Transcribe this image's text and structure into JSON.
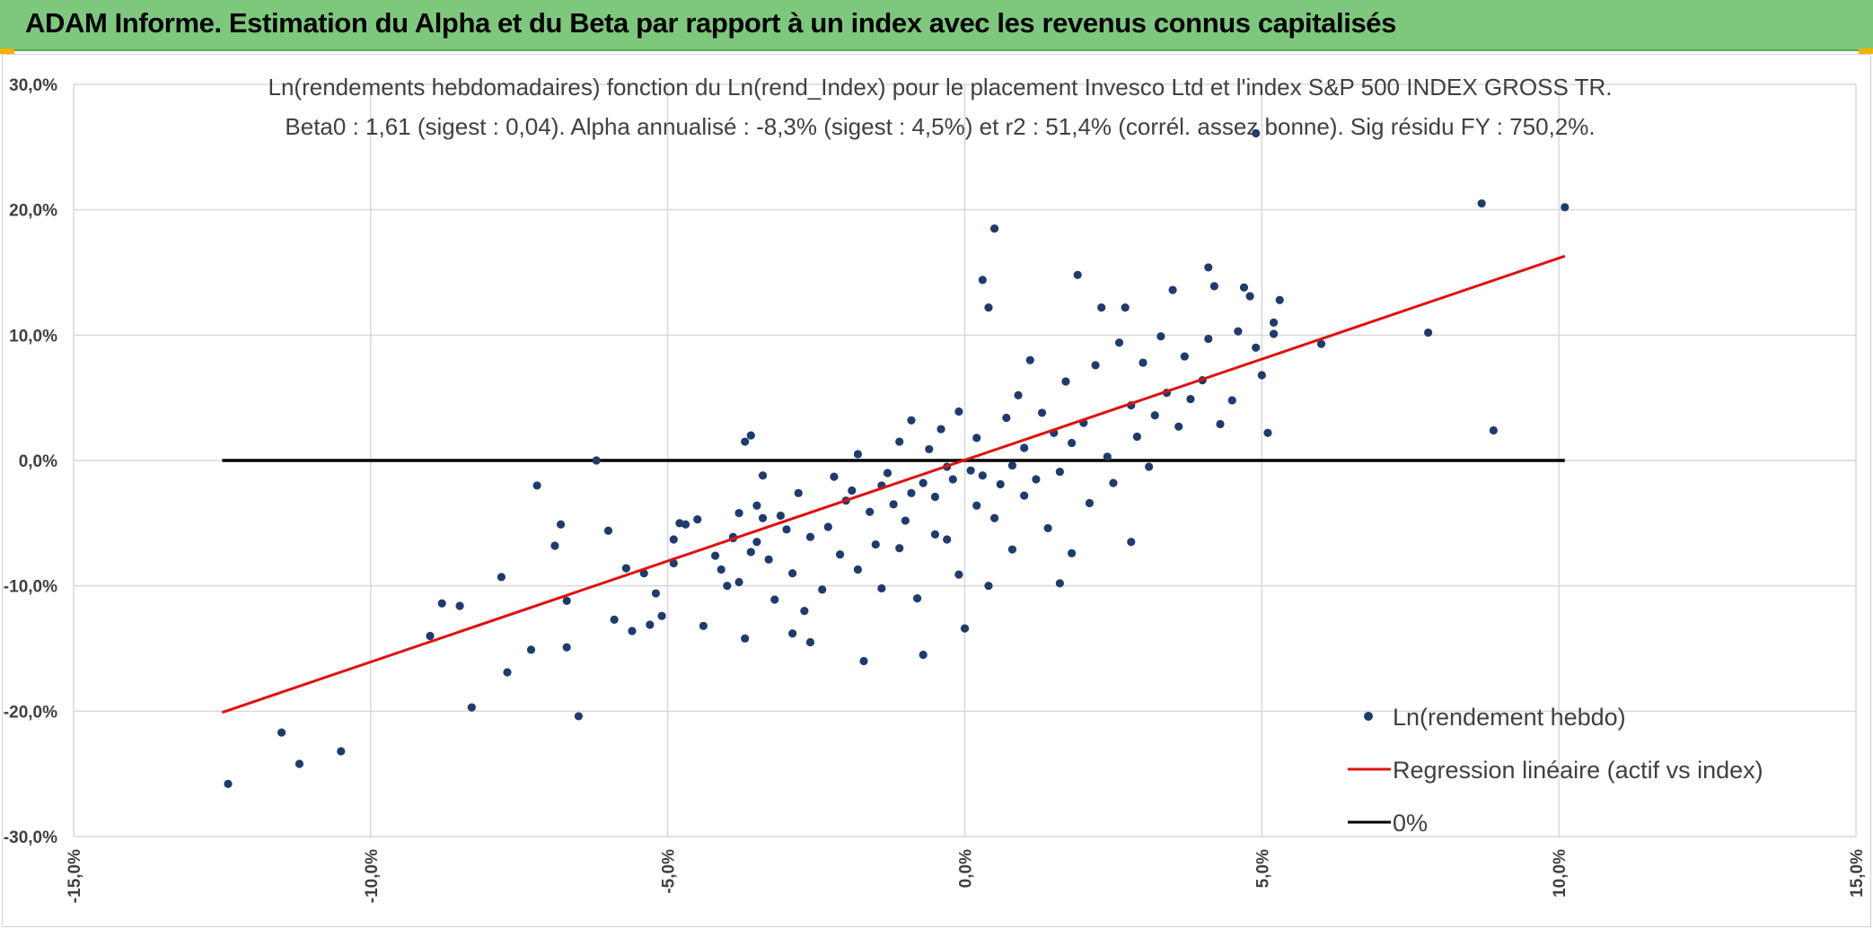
{
  "header": {
    "title": "ADAM Informe. Estimation du Alpha et du Beta par rapport à un index avec les revenus connus capitalisés"
  },
  "colors": {
    "header_bg": "#7ec87e",
    "points": "#1f3b6e",
    "regression": "#e01010",
    "zero_line": "#000000",
    "grid": "#d9d9d9"
  },
  "chart_data": {
    "type": "scatter",
    "title": "Ln(rendements hebdomadaires) fonction du Ln(rend_Index) pour le placement Invesco Ltd et l'index S&P 500 INDEX GROSS TR.",
    "subtitle": "Beta0 : 1,61 (sigest : 0,04). Alpha annualisé : -8,3% (sigest : 4,5%) et r2 : 51,4% (corrél. assez bonne). Sig résidu FY : 750,2%.",
    "xlim": [
      -15,
      15
    ],
    "ylim": [
      -30,
      30
    ],
    "x_ticks": [
      -15,
      -10,
      -5,
      0,
      5,
      10,
      15
    ],
    "x_tick_labels": [
      "-15,0%",
      "-10,0%",
      "-5,0%",
      "0,0%",
      "5,0%",
      "10,0%",
      "15,0%"
    ],
    "y_ticks": [
      30,
      20,
      10,
      0,
      -10,
      -20,
      -30
    ],
    "y_tick_labels": [
      "30,0%",
      "20,0%",
      "10,0%",
      "0,0%",
      "-10,0%",
      "-20,0%",
      "-30,0%"
    ],
    "grid": true,
    "legend_position": "bottom-right",
    "series": [
      {
        "name": "Ln(rendement hebdo)",
        "kind": "scatter",
        "points": [
          [
            -12.4,
            -25.8
          ],
          [
            -11.5,
            -21.7
          ],
          [
            -11.2,
            -24.2
          ],
          [
            -10.5,
            -23.2
          ],
          [
            -9.0,
            -14.0
          ],
          [
            -8.8,
            -11.4
          ],
          [
            -8.5,
            -11.6
          ],
          [
            -8.3,
            -19.7
          ],
          [
            -7.8,
            -9.3
          ],
          [
            -7.7,
            -16.9
          ],
          [
            -7.3,
            -15.1
          ],
          [
            -7.2,
            -2.0
          ],
          [
            -6.9,
            -6.8
          ],
          [
            -6.8,
            -5.1
          ],
          [
            -6.7,
            -11.2
          ],
          [
            -6.7,
            -14.9
          ],
          [
            -6.5,
            -20.4
          ],
          [
            -6.2,
            0.0
          ],
          [
            -6.0,
            -5.6
          ],
          [
            -5.9,
            -12.7
          ],
          [
            -5.7,
            -8.6
          ],
          [
            -5.6,
            -13.6
          ],
          [
            -5.4,
            -9.0
          ],
          [
            -5.3,
            -13.1
          ],
          [
            -5.2,
            -10.6
          ],
          [
            -5.1,
            -12.4
          ],
          [
            -4.9,
            -6.3
          ],
          [
            -4.9,
            -8.2
          ],
          [
            -4.8,
            -5.0
          ],
          [
            -4.7,
            -5.1
          ],
          [
            -4.5,
            -4.7
          ],
          [
            -4.4,
            -13.2
          ],
          [
            -4.2,
            -7.6
          ],
          [
            -4.1,
            -8.7
          ],
          [
            -4.0,
            -10.0
          ],
          [
            -3.9,
            -6.1
          ],
          [
            -3.8,
            -4.2
          ],
          [
            -3.8,
            -9.7
          ],
          [
            -3.7,
            -14.2
          ],
          [
            -3.6,
            -7.3
          ],
          [
            -3.5,
            -3.6
          ],
          [
            -3.5,
            -6.5
          ],
          [
            -3.4,
            -4.6
          ],
          [
            -3.4,
            -1.2
          ],
          [
            -3.3,
            -7.9
          ],
          [
            -3.2,
            -11.1
          ],
          [
            -3.1,
            -4.4
          ],
          [
            -3.0,
            -5.5
          ],
          [
            -2.9,
            -9.0
          ],
          [
            -2.8,
            -2.6
          ],
          [
            -2.7,
            -12.0
          ],
          [
            -2.6,
            -6.1
          ],
          [
            -3.6,
            2.0
          ],
          [
            -3.7,
            1.5
          ],
          [
            -3.9,
            -6.2
          ],
          [
            -2.9,
            -13.8
          ],
          [
            -2.6,
            -14.5
          ],
          [
            -2.4,
            -10.3
          ],
          [
            -2.3,
            -5.3
          ],
          [
            -2.2,
            -1.3
          ],
          [
            -2.1,
            -7.5
          ],
          [
            -2.0,
            -3.2
          ],
          [
            -1.9,
            -2.4
          ],
          [
            -1.8,
            -8.7
          ],
          [
            -1.8,
            0.5
          ],
          [
            -1.7,
            -16.0
          ],
          [
            -1.6,
            -4.1
          ],
          [
            -1.5,
            -6.7
          ],
          [
            -1.4,
            -2.0
          ],
          [
            -1.4,
            -10.2
          ],
          [
            -1.3,
            -1.0
          ],
          [
            -1.2,
            -3.5
          ],
          [
            -1.1,
            1.5
          ],
          [
            -1.1,
            -7.0
          ],
          [
            -1.0,
            -4.8
          ],
          [
            -0.9,
            -2.6
          ],
          [
            -0.9,
            3.2
          ],
          [
            -0.8,
            -11.0
          ],
          [
            -0.7,
            -1.8
          ],
          [
            -0.7,
            -15.5
          ],
          [
            -0.6,
            0.9
          ],
          [
            -0.5,
            -5.9
          ],
          [
            -0.5,
            -2.9
          ],
          [
            -0.4,
            2.5
          ],
          [
            -0.3,
            -0.5
          ],
          [
            -0.3,
            -6.3
          ],
          [
            -0.2,
            -1.5
          ],
          [
            -0.1,
            3.9
          ],
          [
            -0.1,
            -9.1
          ],
          [
            0.0,
            -13.4
          ],
          [
            0.1,
            -0.8
          ],
          [
            0.2,
            1.8
          ],
          [
            0.2,
            -3.6
          ],
          [
            0.3,
            -1.2
          ],
          [
            0.3,
            14.4
          ],
          [
            0.4,
            12.2
          ],
          [
            0.4,
            -10.0
          ],
          [
            0.5,
            18.5
          ],
          [
            0.5,
            -4.6
          ],
          [
            0.6,
            -1.9
          ],
          [
            0.7,
            3.4
          ],
          [
            0.8,
            -0.4
          ],
          [
            0.8,
            -7.1
          ],
          [
            0.9,
            5.2
          ],
          [
            1.0,
            1.0
          ],
          [
            1.0,
            -2.8
          ],
          [
            1.1,
            8.0
          ],
          [
            1.2,
            -1.5
          ],
          [
            1.3,
            3.8
          ],
          [
            1.4,
            -5.4
          ],
          [
            1.5,
            2.2
          ],
          [
            1.6,
            -0.9
          ],
          [
            1.6,
            -9.8
          ],
          [
            1.7,
            6.3
          ],
          [
            1.8,
            1.4
          ],
          [
            1.8,
            -7.4
          ],
          [
            1.9,
            14.8
          ],
          [
            2.0,
            3.0
          ],
          [
            2.1,
            -3.4
          ],
          [
            2.2,
            7.6
          ],
          [
            2.3,
            12.2
          ],
          [
            2.4,
            0.3
          ],
          [
            2.5,
            -1.8
          ],
          [
            2.6,
            9.4
          ],
          [
            2.7,
            12.2
          ],
          [
            2.8,
            4.4
          ],
          [
            2.8,
            -6.5
          ],
          [
            2.9,
            1.9
          ],
          [
            3.0,
            7.8
          ],
          [
            3.1,
            -0.5
          ],
          [
            3.2,
            3.6
          ],
          [
            3.3,
            9.9
          ],
          [
            3.4,
            5.4
          ],
          [
            3.5,
            13.6
          ],
          [
            3.6,
            2.7
          ],
          [
            3.7,
            8.3
          ],
          [
            3.8,
            4.9
          ],
          [
            4.0,
            6.4
          ],
          [
            4.1,
            15.4
          ],
          [
            4.1,
            9.7
          ],
          [
            4.2,
            13.9
          ],
          [
            4.3,
            2.9
          ],
          [
            4.5,
            4.8
          ],
          [
            4.6,
            10.3
          ],
          [
            4.7,
            13.8
          ],
          [
            4.8,
            13.1
          ],
          [
            4.9,
            9.0
          ],
          [
            4.9,
            26.1
          ],
          [
            5.0,
            6.8
          ],
          [
            5.1,
            2.2
          ],
          [
            5.2,
            11.0
          ],
          [
            5.2,
            10.1
          ],
          [
            5.3,
            12.8
          ],
          [
            6.0,
            9.3
          ],
          [
            7.8,
            10.2
          ],
          [
            8.7,
            20.5
          ],
          [
            8.9,
            2.4
          ],
          [
            10.1,
            20.2
          ]
        ]
      },
      {
        "name": "Regression linéaire (actif vs index)",
        "kind": "line",
        "points": [
          [
            -12.5,
            -20.1
          ],
          [
            10.1,
            16.3
          ]
        ]
      },
      {
        "name": "0%",
        "kind": "line",
        "points": [
          [
            -12.5,
            0
          ],
          [
            10.1,
            0
          ]
        ]
      }
    ]
  }
}
